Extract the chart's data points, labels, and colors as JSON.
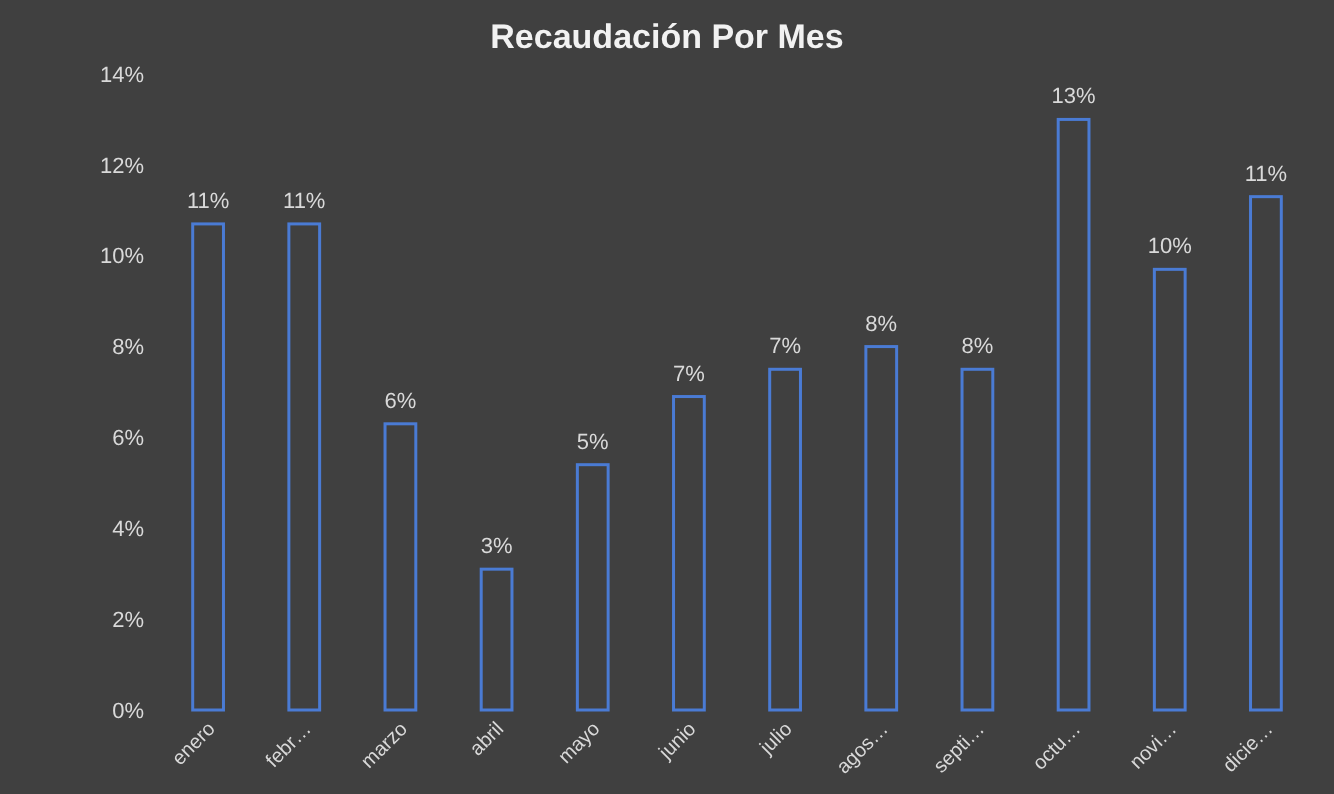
{
  "chart_data": {
    "type": "bar",
    "title": "Recaudación Por Mes",
    "categories": [
      "enero",
      "febr…",
      "marzo",
      "abril",
      "mayo",
      "junio",
      "julio",
      "agos…",
      "septi…",
      "octu…",
      "novi…",
      "dicie…"
    ],
    "values": [
      10.7,
      10.7,
      6.3,
      3.1,
      5.4,
      6.9,
      7.5,
      8.0,
      7.5,
      13.0,
      9.7,
      11.3
    ],
    "value_labels": [
      "11%",
      "11%",
      "6%",
      "3%",
      "5%",
      "7%",
      "7%",
      "8%",
      "8%",
      "13%",
      "10%",
      "11%"
    ],
    "color": "#4a7bd4",
    "ylim": [
      0,
      14
    ],
    "yticks": [
      {
        "value": 0,
        "label": "0%"
      },
      {
        "value": 2,
        "label": "2%"
      },
      {
        "value": 4,
        "label": "4%"
      },
      {
        "value": 6,
        "label": "6%"
      },
      {
        "value": 8,
        "label": "8%"
      },
      {
        "value": 10,
        "label": "10%"
      },
      {
        "value": 12,
        "label": "12%"
      },
      {
        "value": 14,
        "label": "14%"
      }
    ],
    "grid": false
  }
}
